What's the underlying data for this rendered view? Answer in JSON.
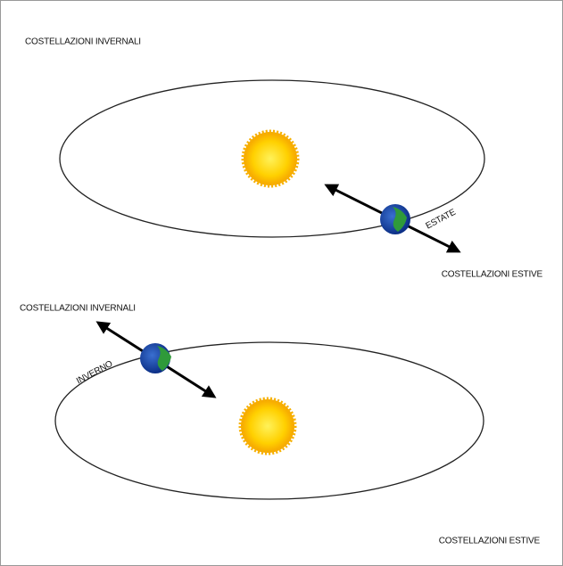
{
  "panels": [
    {
      "top_label": "COSTELLAZIONI INVERNALI",
      "season_label": "ESTATE",
      "bottom_label": "COSTELLAZIONI ESTIVE"
    },
    {
      "top_label": "COSTELLAZIONI INVERNALI",
      "season_label": "INVERNO",
      "bottom_label": "COSTELLAZIONI ESTIVE"
    }
  ]
}
